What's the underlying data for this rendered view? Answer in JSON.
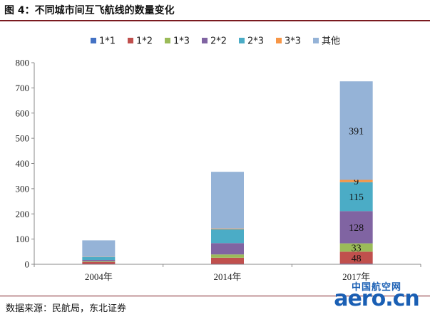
{
  "figure_title": "图 4：不同城市间互飞航线的数量变化",
  "source": "数据来源：民航局，东北证券",
  "watermark": {
    "top": "中国航空网",
    "main": "aero.cn"
  },
  "chart_data": {
    "type": "bar",
    "stacked": true,
    "categories": [
      "2004年",
      "2014年",
      "2017年"
    ],
    "series": [
      {
        "name": "1*1",
        "color": "#4472c4",
        "values": [
          1,
          1,
          2
        ]
      },
      {
        "name": "1*2",
        "color": "#c0504d",
        "values": [
          8,
          25,
          48
        ]
      },
      {
        "name": "1*3",
        "color": "#9bbb59",
        "values": [
          3,
          13,
          33
        ]
      },
      {
        "name": "2*2",
        "color": "#8064a2",
        "values": [
          5,
          45,
          128
        ]
      },
      {
        "name": "2*3",
        "color": "#4bacc6",
        "values": [
          12,
          55,
          115
        ]
      },
      {
        "name": "3*3",
        "color": "#f79646",
        "values": [
          1,
          3,
          9
        ]
      },
      {
        "name": "其他",
        "color": "#95b3d7",
        "values": [
          65,
          225,
          391
        ]
      }
    ],
    "data_labels": {
      "2017年": {
        "1*2": "48",
        "1*3": "33",
        "2*2": "128",
        "2*3": "115",
        "3*3": "9",
        "其他": "391"
      }
    },
    "ylim": [
      0,
      800
    ],
    "yticks": [
      0,
      100,
      200,
      300,
      400,
      500,
      600,
      700,
      800
    ],
    "grid": false,
    "legend": "top"
  }
}
